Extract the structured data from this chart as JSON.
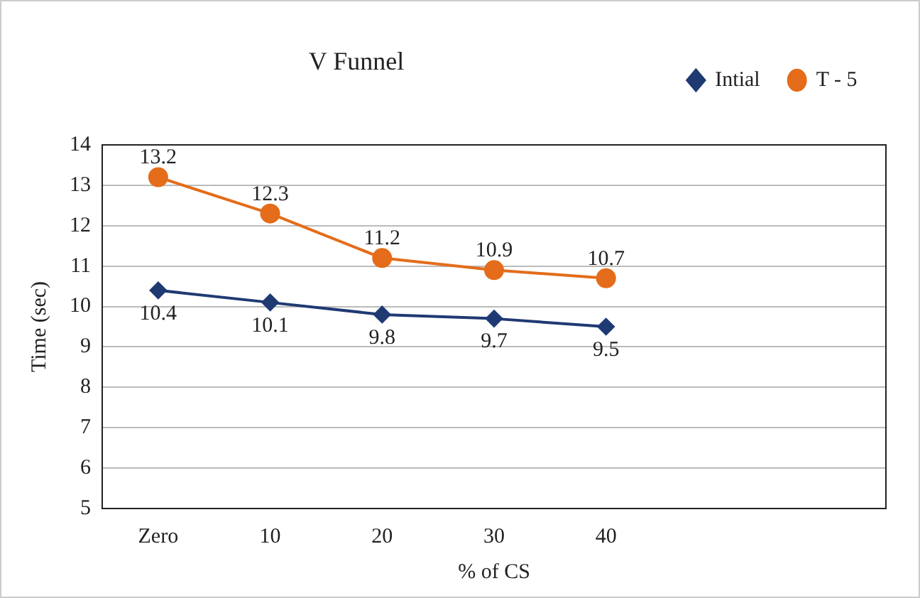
{
  "chart_data": {
    "type": "line",
    "title": "V Funnel",
    "xlabel": "% of CS",
    "ylabel": "Time (sec)",
    "categories": [
      "Zero",
      "10",
      "20",
      "30",
      "40",
      null,
      null
    ],
    "series": [
      {
        "name": "Intial",
        "color": "#1f3a73",
        "marker": "diamond",
        "values": [
          10.4,
          10.1,
          9.8,
          9.7,
          9.5,
          null,
          null
        ]
      },
      {
        "name": "T - 5",
        "color": "#e46c1a",
        "marker": "circle",
        "values": [
          13.2,
          12.3,
          11.2,
          10.9,
          10.7,
          null,
          null
        ]
      }
    ],
    "ylim": [
      5,
      14
    ],
    "yticks": [
      5,
      6,
      7,
      8,
      9,
      10,
      11,
      12,
      13,
      14
    ],
    "grid": "y",
    "legend": "top right",
    "data_labels": true
  }
}
